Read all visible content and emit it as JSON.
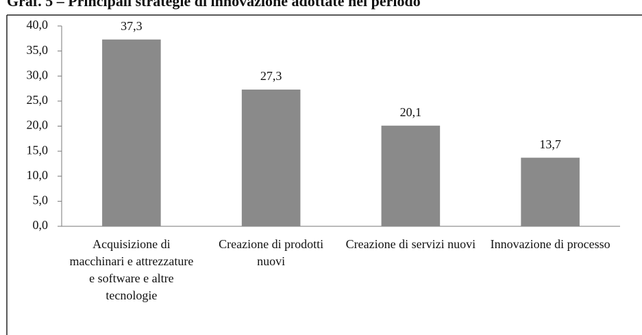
{
  "chart_data": {
    "type": "bar",
    "title": "Graf. 5 – Principali strategie di innovazione adottate nel periodo",
    "categories": [
      "Acquisizione di macchinari e attrezzature e software e altre tecnologie",
      "Creazione di prodotti nuovi",
      "Creazione di servizi nuovi",
      "Innovazione di processo"
    ],
    "values": [
      37.3,
      27.3,
      20.1,
      13.7
    ],
    "value_labels": [
      "37,3",
      "27,3",
      "20,1",
      "13,7"
    ],
    "color": "#8a8a8a",
    "ylim": [
      0,
      40
    ],
    "yticks": [
      {
        "value": 0,
        "label": "0,0"
      },
      {
        "value": 5,
        "label": "5,0"
      },
      {
        "value": 10,
        "label": "10,0"
      },
      {
        "value": 15,
        "label": "15,0"
      },
      {
        "value": 20,
        "label": "20,0"
      },
      {
        "value": 25,
        "label": "25,0"
      },
      {
        "value": 30,
        "label": "30,0"
      },
      {
        "value": 35,
        "label": "35,0"
      },
      {
        "value": 40,
        "label": "40,0"
      }
    ],
    "grid": false
  }
}
